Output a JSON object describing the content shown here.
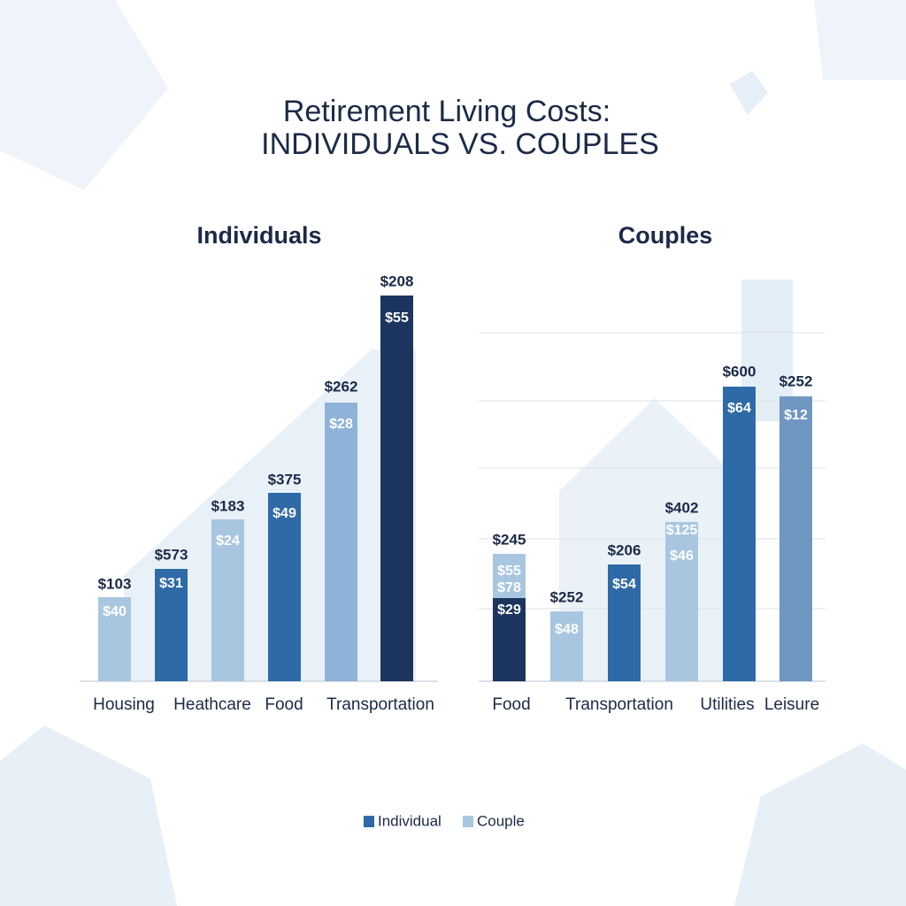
{
  "header": {
    "title_line1": "Retirement Living Costs:",
    "title_line2": "INDIVIDUALS VS. COUPLES"
  },
  "panels": [
    {
      "title": "Individuals",
      "categories": [
        "Housing",
        "Heathcare",
        "Food",
        "Transportation"
      ],
      "bars": [
        {
          "top_label": "$103",
          "inner_labels": [
            "$40"
          ]
        },
        {
          "top_label": "$573",
          "inner_labels": [
            "$31"
          ]
        },
        {
          "top_label": "$183",
          "inner_labels": [
            "$24"
          ]
        },
        {
          "top_label": "$375",
          "inner_labels": [
            "$49"
          ]
        },
        {
          "top_label": "$262",
          "inner_labels": [
            "$28"
          ]
        },
        {
          "top_label": "$208",
          "inner_labels": [
            "$55"
          ]
        }
      ]
    },
    {
      "title": "Couples",
      "categories": [
        "Food",
        "Transportation",
        "Utilities",
        "Leisure"
      ],
      "bars": [
        {
          "top_label": "$245",
          "inner_labels": [
            "$55",
            "$78",
            "$29"
          ]
        },
        {
          "top_label": "$252",
          "inner_labels": [
            "$48"
          ]
        },
        {
          "top_label": "$206",
          "inner_labels": [
            "$54"
          ]
        },
        {
          "top_label": "$402",
          "inner_labels": [
            "$125",
            "$46"
          ]
        },
        {
          "top_label": "$600",
          "inner_labels": [
            "$64"
          ]
        },
        {
          "top_label": "$252",
          "inner_labels": [
            "$12"
          ]
        }
      ]
    }
  ],
  "legend": [
    "Individual",
    "Couple"
  ]
}
